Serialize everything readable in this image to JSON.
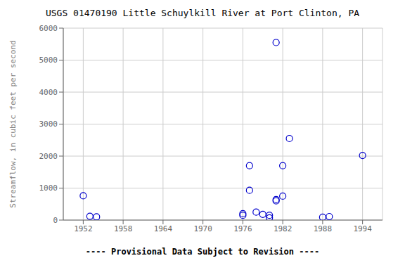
{
  "chart_data": {
    "type": "scatter",
    "title": "USGS 01470190 Little Schuylkill River at Port Clinton, PA",
    "ylabel": "Streamflow, in cubic feet per second",
    "annotations": [
      "---- Provisional Data Subject to Revision ----"
    ],
    "x": [
      1952,
      1953,
      1954,
      1976,
      1976,
      1977,
      1977,
      1978,
      1979,
      1980,
      1980,
      1981,
      1981,
      1981,
      1982,
      1982,
      1983,
      1988,
      1989,
      1994
    ],
    "values": [
      760,
      120,
      100,
      150,
      200,
      930,
      1700,
      250,
      180,
      70,
      150,
      5550,
      600,
      640,
      750,
      1700,
      2550,
      90,
      110,
      2020
    ],
    "xlim": [
      1949,
      1997
    ],
    "ylim": [
      0,
      6000
    ],
    "xticks": [
      1952,
      1958,
      1964,
      1970,
      1976,
      1982,
      1988,
      1994
    ],
    "yticks": [
      0,
      1000,
      2000,
      3000,
      4000,
      5000,
      6000
    ],
    "color": "#0000cc",
    "marker": "circle",
    "grid": true
  }
}
